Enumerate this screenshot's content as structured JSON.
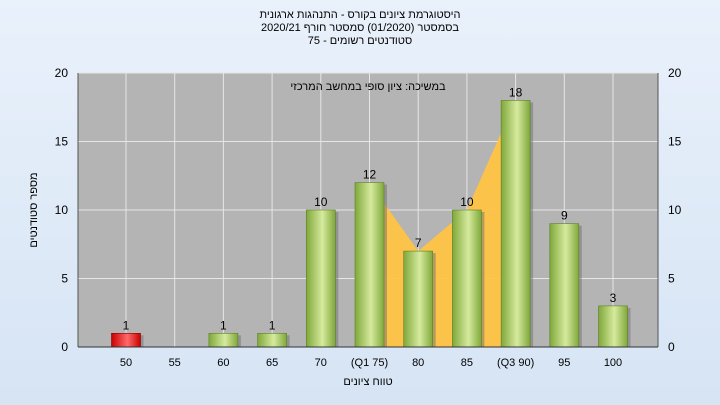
{
  "title_lines": [
    "היסטוגרמת ציונים בקורס - התנהגות ארגונית",
    "בסמסטר  (01/2020)  סמסטר חורף  2020/21",
    "סטודנטים רשומים - 75"
  ],
  "colors": {
    "plot_bg": "#b4b4b4",
    "bar_green_light": "#d6ea9e",
    "bar_green_dark": "#7fa83a",
    "bar_red_light": "#ff6a6a",
    "bar_red_dark": "#c80000",
    "area": "#ffc445",
    "grid": "#e6e6e6"
  },
  "chart_data": {
    "type": "bar",
    "categories": [
      "50",
      "55",
      "60",
      "65",
      "70",
      "(Q1 75)",
      "80",
      "85",
      "(Q3 90)",
      "95",
      "100"
    ],
    "values": [
      1,
      0,
      1,
      1,
      10,
      12,
      7,
      10,
      18,
      9,
      3
    ],
    "value_labels": [
      "1",
      "",
      "1",
      "1",
      "10",
      "12",
      "7",
      "10",
      "18",
      "9",
      "3"
    ],
    "highlight_index": 0,
    "area_range": [
      5,
      8
    ],
    "xlabel": "טווח ציונים",
    "ylabel": "מספר סטודנטים",
    "ylim": [
      0,
      20
    ],
    "yticks": [
      0,
      5,
      10,
      15,
      20
    ],
    "annotation": "במשיכה: ציון סופי במחשב המרכזי",
    "grid": true
  }
}
